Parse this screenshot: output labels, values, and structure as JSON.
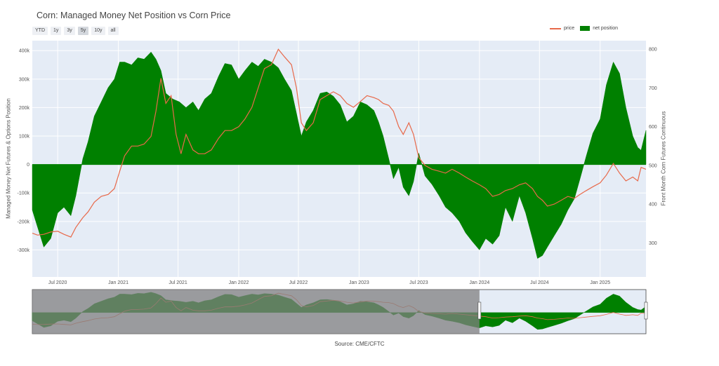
{
  "title": "Corn: Managed Money Net Position vs Corn Price",
  "range_buttons": [
    {
      "label": "YTD",
      "active": false
    },
    {
      "label": "1y",
      "active": false
    },
    {
      "label": "3y",
      "active": false
    },
    {
      "label": "5y",
      "active": true
    },
    {
      "label": "10y",
      "active": false
    },
    {
      "label": "all",
      "active": false
    }
  ],
  "legend": {
    "price_label": "price",
    "net_label": "net position"
  },
  "source": "Source: CME/CFTC",
  "colors": {
    "price": "#e8694a",
    "net": "#008000",
    "plot_bg": "#e5ecf6",
    "grid": "#ffffff",
    "selector_shade": "#808080"
  },
  "chart_data": {
    "type": "area",
    "ylabel_left": "Managed Money Net Futures & Options Position",
    "ylabel_right": "Front Month Corn Futures Continuous",
    "y_left_ticks": [
      -300000,
      -200000,
      -100000,
      0,
      100000,
      200000,
      300000,
      400000
    ],
    "y_left_tick_labels": [
      "-300k",
      "-200k",
      "-100k",
      "0",
      "100k",
      "200k",
      "300k",
      "400k"
    ],
    "y_left_range": [
      -395000,
      435000
    ],
    "y_right_ticks": [
      300,
      400,
      500,
      600,
      700,
      800
    ],
    "y_right_tick_labels": [
      "300",
      "400",
      "500",
      "600",
      "700",
      "800"
    ],
    "y_right_range": [
      212,
      822
    ],
    "x_ticks": [
      "2020-07-01",
      "2021-01-01",
      "2021-07-01",
      "2022-01-01",
      "2022-07-01",
      "2023-01-01",
      "2023-07-01",
      "2024-01-01",
      "2024-07-01",
      "2025-01-01"
    ],
    "x_tick_labels": [
      "Jul 2020",
      "Jan 2021",
      "Jul 2021",
      "Jan 2022",
      "Jul 2022",
      "Jan 2023",
      "Jul 2023",
      "Jan 2024",
      "Jul 2024",
      "Jan 2025"
    ],
    "x_range": [
      "2020-04-15",
      "2025-05-20"
    ],
    "series": [
      {
        "name": "net position",
        "kind": "area",
        "points": [
          [
            "2020-04-15",
            -160000
          ],
          [
            "2020-05-01",
            -220000
          ],
          [
            "2020-05-20",
            -290000
          ],
          [
            "2020-06-10",
            -260000
          ],
          [
            "2020-07-01",
            -170000
          ],
          [
            "2020-07-20",
            -150000
          ],
          [
            "2020-08-10",
            -180000
          ],
          [
            "2020-08-25",
            -110000
          ],
          [
            "2020-09-15",
            20000
          ],
          [
            "2020-10-01",
            80000
          ],
          [
            "2020-10-20",
            170000
          ],
          [
            "2020-11-10",
            220000
          ],
          [
            "2020-12-01",
            270000
          ],
          [
            "2020-12-20",
            300000
          ],
          [
            "2021-01-05",
            360000
          ],
          [
            "2021-01-20",
            360000
          ],
          [
            "2021-02-10",
            350000
          ],
          [
            "2021-03-01",
            375000
          ],
          [
            "2021-03-20",
            370000
          ],
          [
            "2021-04-10",
            395000
          ],
          [
            "2021-04-25",
            370000
          ],
          [
            "2021-05-10",
            330000
          ],
          [
            "2021-05-25",
            250000
          ],
          [
            "2021-06-15",
            230000
          ],
          [
            "2021-07-05",
            220000
          ],
          [
            "2021-07-25",
            200000
          ],
          [
            "2021-08-15",
            220000
          ],
          [
            "2021-09-01",
            190000
          ],
          [
            "2021-09-20",
            230000
          ],
          [
            "2021-10-10",
            250000
          ],
          [
            "2021-11-01",
            310000
          ],
          [
            "2021-11-20",
            355000
          ],
          [
            "2021-12-10",
            350000
          ],
          [
            "2022-01-01",
            300000
          ],
          [
            "2022-01-20",
            330000
          ],
          [
            "2022-02-10",
            360000
          ],
          [
            "2022-03-01",
            345000
          ],
          [
            "2022-03-20",
            370000
          ],
          [
            "2022-04-10",
            360000
          ],
          [
            "2022-05-01",
            340000
          ],
          [
            "2022-05-20",
            300000
          ],
          [
            "2022-06-10",
            260000
          ],
          [
            "2022-06-25",
            180000
          ],
          [
            "2022-07-10",
            100000
          ],
          [
            "2022-07-25",
            150000
          ],
          [
            "2022-08-15",
            190000
          ],
          [
            "2022-09-05",
            250000
          ],
          [
            "2022-09-25",
            255000
          ],
          [
            "2022-10-15",
            240000
          ],
          [
            "2022-11-05",
            210000
          ],
          [
            "2022-11-25",
            150000
          ],
          [
            "2022-12-15",
            170000
          ],
          [
            "2023-01-05",
            220000
          ],
          [
            "2023-01-25",
            210000
          ],
          [
            "2023-02-15",
            190000
          ],
          [
            "2023-03-01",
            150000
          ],
          [
            "2023-03-15",
            100000
          ],
          [
            "2023-04-01",
            20000
          ],
          [
            "2023-04-15",
            -50000
          ],
          [
            "2023-05-01",
            -10000
          ],
          [
            "2023-05-15",
            -80000
          ],
          [
            "2023-06-01",
            -110000
          ],
          [
            "2023-06-15",
            -60000
          ],
          [
            "2023-07-01",
            40000
          ],
          [
            "2023-07-20",
            -40000
          ],
          [
            "2023-08-10",
            -70000
          ],
          [
            "2023-09-01",
            -110000
          ],
          [
            "2023-09-20",
            -150000
          ],
          [
            "2023-10-10",
            -170000
          ],
          [
            "2023-11-01",
            -200000
          ],
          [
            "2023-11-20",
            -240000
          ],
          [
            "2023-12-10",
            -270000
          ],
          [
            "2024-01-01",
            -300000
          ],
          [
            "2024-01-20",
            -260000
          ],
          [
            "2024-02-10",
            -280000
          ],
          [
            "2024-03-01",
            -250000
          ],
          [
            "2024-03-20",
            -150000
          ],
          [
            "2024-04-10",
            -200000
          ],
          [
            "2024-05-01",
            -110000
          ],
          [
            "2024-05-20",
            -170000
          ],
          [
            "2024-06-10",
            -260000
          ],
          [
            "2024-06-25",
            -330000
          ],
          [
            "2024-07-10",
            -320000
          ],
          [
            "2024-07-25",
            -290000
          ],
          [
            "2024-08-15",
            -250000
          ],
          [
            "2024-09-05",
            -210000
          ],
          [
            "2024-09-25",
            -160000
          ],
          [
            "2024-10-15",
            -120000
          ],
          [
            "2024-11-01",
            -50000
          ],
          [
            "2024-11-20",
            30000
          ],
          [
            "2024-12-10",
            110000
          ],
          [
            "2025-01-01",
            160000
          ],
          [
            "2025-01-20",
            280000
          ],
          [
            "2025-02-10",
            360000
          ],
          [
            "2025-03-01",
            320000
          ],
          [
            "2025-03-20",
            200000
          ],
          [
            "2025-04-10",
            100000
          ],
          [
            "2025-04-25",
            60000
          ],
          [
            "2025-05-05",
            50000
          ],
          [
            "2025-05-20",
            120000
          ]
        ]
      },
      {
        "name": "price",
        "kind": "line",
        "points": [
          [
            "2020-04-15",
            325
          ],
          [
            "2020-05-01",
            320
          ],
          [
            "2020-05-20",
            322
          ],
          [
            "2020-06-10",
            328
          ],
          [
            "2020-07-01",
            330
          ],
          [
            "2020-07-20",
            322
          ],
          [
            "2020-08-10",
            315
          ],
          [
            "2020-08-25",
            340
          ],
          [
            "2020-09-15",
            365
          ],
          [
            "2020-10-01",
            380
          ],
          [
            "2020-10-20",
            405
          ],
          [
            "2020-11-10",
            420
          ],
          [
            "2020-12-01",
            425
          ],
          [
            "2020-12-20",
            440
          ],
          [
            "2021-01-05",
            485
          ],
          [
            "2021-01-20",
            525
          ],
          [
            "2021-02-10",
            550
          ],
          [
            "2021-03-01",
            550
          ],
          [
            "2021-03-20",
            555
          ],
          [
            "2021-04-10",
            575
          ],
          [
            "2021-04-25",
            640
          ],
          [
            "2021-05-10",
            725
          ],
          [
            "2021-05-25",
            660
          ],
          [
            "2021-06-10",
            680
          ],
          [
            "2021-06-25",
            580
          ],
          [
            "2021-07-10",
            530
          ],
          [
            "2021-07-25",
            580
          ],
          [
            "2021-08-15",
            540
          ],
          [
            "2021-09-01",
            530
          ],
          [
            "2021-09-20",
            530
          ],
          [
            "2021-10-10",
            540
          ],
          [
            "2021-11-01",
            570
          ],
          [
            "2021-11-20",
            590
          ],
          [
            "2021-12-10",
            590
          ],
          [
            "2022-01-01",
            600
          ],
          [
            "2022-01-20",
            620
          ],
          [
            "2022-02-10",
            650
          ],
          [
            "2022-03-01",
            700
          ],
          [
            "2022-03-20",
            750
          ],
          [
            "2022-04-10",
            760
          ],
          [
            "2022-05-01",
            800
          ],
          [
            "2022-05-20",
            780
          ],
          [
            "2022-06-10",
            760
          ],
          [
            "2022-06-25",
            700
          ],
          [
            "2022-07-10",
            610
          ],
          [
            "2022-07-25",
            590
          ],
          [
            "2022-08-15",
            610
          ],
          [
            "2022-09-05",
            670
          ],
          [
            "2022-09-25",
            680
          ],
          [
            "2022-10-15",
            690
          ],
          [
            "2022-11-05",
            680
          ],
          [
            "2022-11-25",
            660
          ],
          [
            "2022-12-15",
            650
          ],
          [
            "2023-01-05",
            665
          ],
          [
            "2023-01-25",
            680
          ],
          [
            "2023-02-15",
            675
          ],
          [
            "2023-03-01",
            670
          ],
          [
            "2023-03-15",
            660
          ],
          [
            "2023-04-01",
            655
          ],
          [
            "2023-04-15",
            640
          ],
          [
            "2023-05-01",
            600
          ],
          [
            "2023-05-15",
            580
          ],
          [
            "2023-06-01",
            610
          ],
          [
            "2023-06-15",
            580
          ],
          [
            "2023-07-01",
            520
          ],
          [
            "2023-07-20",
            500
          ],
          [
            "2023-08-10",
            490
          ],
          [
            "2023-09-01",
            485
          ],
          [
            "2023-09-20",
            480
          ],
          [
            "2023-10-10",
            490
          ],
          [
            "2023-11-01",
            480
          ],
          [
            "2023-11-20",
            470
          ],
          [
            "2023-12-10",
            460
          ],
          [
            "2024-01-01",
            450
          ],
          [
            "2024-01-20",
            440
          ],
          [
            "2024-02-10",
            420
          ],
          [
            "2024-03-01",
            425
          ],
          [
            "2024-03-20",
            435
          ],
          [
            "2024-04-10",
            440
          ],
          [
            "2024-05-01",
            450
          ],
          [
            "2024-05-20",
            455
          ],
          [
            "2024-06-10",
            440
          ],
          [
            "2024-06-25",
            420
          ],
          [
            "2024-07-10",
            410
          ],
          [
            "2024-07-25",
            395
          ],
          [
            "2024-08-15",
            400
          ],
          [
            "2024-09-05",
            410
          ],
          [
            "2024-09-25",
            420
          ],
          [
            "2024-10-15",
            415
          ],
          [
            "2024-11-01",
            425
          ],
          [
            "2024-11-20",
            435
          ],
          [
            "2024-12-10",
            445
          ],
          [
            "2025-01-01",
            455
          ],
          [
            "2025-01-20",
            475
          ],
          [
            "2025-02-10",
            505
          ],
          [
            "2025-03-01",
            480
          ],
          [
            "2025-03-20",
            460
          ],
          [
            "2025-04-10",
            470
          ],
          [
            "2025-04-25",
            460
          ],
          [
            "2025-05-05",
            495
          ],
          [
            "2025-05-20",
            490
          ]
        ]
      }
    ],
    "grid": true,
    "legend_position": "top-right",
    "range_selector_window": [
      "2024-01-01",
      "2025-05-20"
    ]
  }
}
